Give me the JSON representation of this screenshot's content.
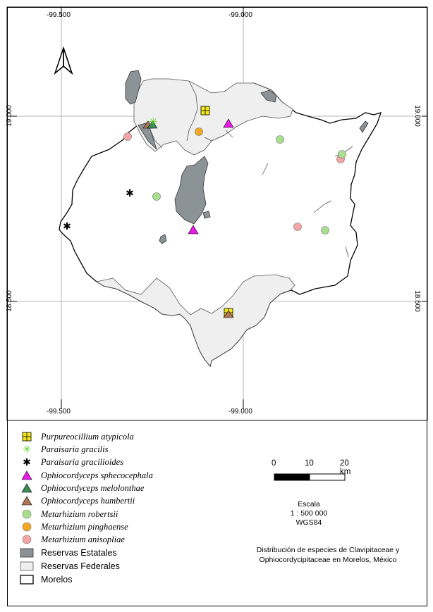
{
  "map": {
    "coords": {
      "top_left": "-99.500",
      "top_right": "-99.000",
      "bottom_left": "-99.500",
      "bottom_right": "-99.000",
      "left_top": "19.000",
      "left_bottom": "18.500",
      "right_top": "19.000",
      "right_bottom": "18.500"
    },
    "north_arrow": "north-arrow-icon",
    "colors": {
      "estatales": "#8c9396",
      "federales": "#efefef",
      "purpureocillium": "#f2e61a",
      "paraisaria_gracilis": "#55d024",
      "ophio_sphecocephala": "#e81ae8",
      "ophio_melolonthae": "#3d8a55",
      "ophio_humbertii": "#b07555",
      "met_robertsii": "#a9e08e",
      "met_pinghaense": "#f5a623",
      "met_anisopliae": "#f5a5a5"
    }
  },
  "legend": {
    "items": [
      {
        "label": "Purpureocillium atypicola",
        "icon": "yellow-square-cross-icon"
      },
      {
        "label": "Paraisaria gracilis",
        "icon": "green-star-icon"
      },
      {
        "label": "Paraisaria gracilioides",
        "icon": "black-asterisk-icon"
      },
      {
        "label": "Ophiocordyceps sphecocephala",
        "icon": "magenta-triangle-icon"
      },
      {
        "label": "Ophiocordyceps melolonthae",
        "icon": "green-triangle-icon"
      },
      {
        "label": "Ophiocordyceps humbertii",
        "icon": "brown-triangle-icon"
      },
      {
        "label": "Metarhizium robertsii",
        "icon": "light-green-circle-icon"
      },
      {
        "label": "Metarhizium pinghaense",
        "icon": "orange-circle-icon"
      },
      {
        "label": "Metarhizium anisopliae",
        "icon": "pink-circle-icon"
      },
      {
        "label": "Reservas Estatales",
        "icon": "gray-box-icon"
      },
      {
        "label": "Reservas Federales",
        "icon": "light-box-icon"
      },
      {
        "label": "Morelos",
        "icon": "outline-box-icon"
      }
    ]
  },
  "scale_bar": {
    "ticks": [
      "0",
      "10",
      "20 km"
    ]
  },
  "scale_text": {
    "line1": "Escala",
    "line2": "1 : 500 000",
    "line3": "WGS84"
  },
  "title": {
    "line1": "Distribución de especies de Clavipitaceae y",
    "line2": "Ophiocordycipitaceae en Morelos, México"
  }
}
